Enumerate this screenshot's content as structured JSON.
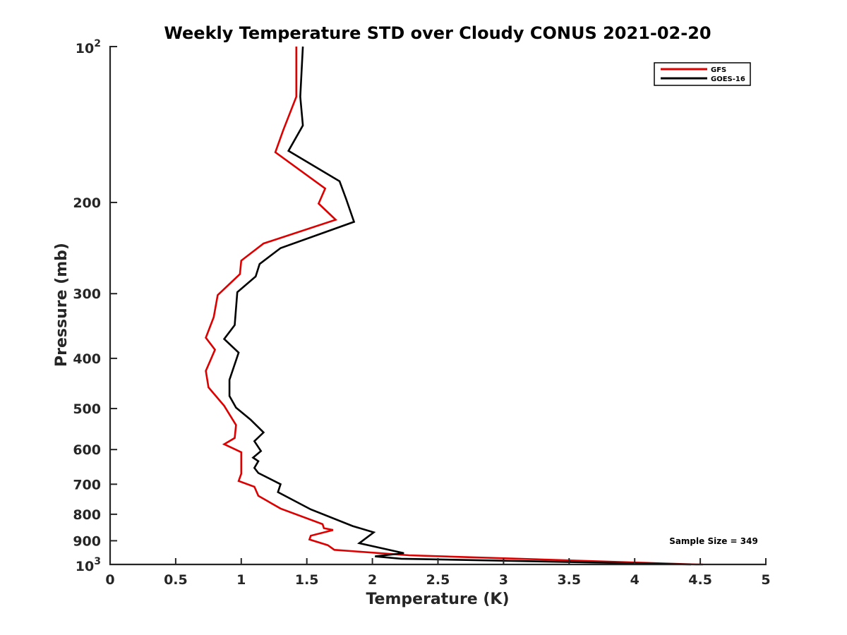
{
  "chart_data": {
    "type": "line",
    "title": "Weekly Temperature STD over Cloudy CONUS 2021-02-20",
    "xlabel": "Temperature (K)",
    "ylabel": "Pressure (mb)",
    "xlim": [
      0,
      5
    ],
    "ylim": [
      100,
      1000
    ],
    "y_scale": "log",
    "y_reversed": true,
    "x_ticks": [
      0,
      0.5,
      1,
      1.5,
      2,
      2.5,
      3,
      3.5,
      4,
      4.5,
      5
    ],
    "x_tick_labels": [
      "0",
      "0.5",
      "1",
      "1.5",
      "2",
      "2.5",
      "3",
      "3.5",
      "4",
      "4.5",
      "5"
    ],
    "y_ticks": [
      200,
      300,
      400,
      500,
      600,
      700,
      800,
      900
    ],
    "y_tick_labels": [
      "200",
      "300",
      "400",
      "500",
      "600",
      "700",
      "800",
      "900"
    ],
    "y_end_labels": [
      {
        "value": 100,
        "base": "10",
        "exp": "2"
      },
      {
        "value": 1000,
        "base": "10",
        "exp": "3"
      }
    ],
    "legend_position": "top-right",
    "annotation": "Sample Size = 349",
    "series": [
      {
        "name": "GFS",
        "color": "#dd0000",
        "points": [
          [
            1.42,
            100
          ],
          [
            1.42,
            125
          ],
          [
            1.32,
            145
          ],
          [
            1.26,
            160
          ],
          [
            1.64,
            188
          ],
          [
            1.59,
            201
          ],
          [
            1.72,
            216
          ],
          [
            1.17,
            240
          ],
          [
            1.0,
            259
          ],
          [
            0.99,
            275
          ],
          [
            0.82,
            302
          ],
          [
            0.79,
            333
          ],
          [
            0.73,
            365
          ],
          [
            0.8,
            385
          ],
          [
            0.73,
            423
          ],
          [
            0.75,
            455
          ],
          [
            0.87,
            494
          ],
          [
            0.96,
            538
          ],
          [
            0.95,
            570
          ],
          [
            0.87,
            586
          ],
          [
            1.0,
            607
          ],
          [
            1.0,
            668
          ],
          [
            0.98,
            690
          ],
          [
            1.1,
            708
          ],
          [
            1.13,
            737
          ],
          [
            1.3,
            780
          ],
          [
            1.62,
            836
          ],
          [
            1.63,
            851
          ],
          [
            1.7,
            858
          ],
          [
            1.53,
            880
          ],
          [
            1.52,
            895
          ],
          [
            1.66,
            918
          ],
          [
            1.71,
            937
          ],
          [
            2.28,
            960
          ],
          [
            4.47,
            1000
          ],
          [
            4.52,
            1000
          ]
        ]
      },
      {
        "name": "GOES-16",
        "color": "#000000",
        "points": [
          [
            1.47,
            100
          ],
          [
            1.45,
            125
          ],
          [
            1.47,
            142
          ],
          [
            1.36,
            159
          ],
          [
            1.75,
            182
          ],
          [
            1.8,
            197
          ],
          [
            1.86,
            218
          ],
          [
            1.3,
            245
          ],
          [
            1.14,
            263
          ],
          [
            1.11,
            278
          ],
          [
            0.97,
            298
          ],
          [
            0.95,
            345
          ],
          [
            0.87,
            367
          ],
          [
            0.98,
            390
          ],
          [
            0.91,
            440
          ],
          [
            0.91,
            473
          ],
          [
            0.96,
            498
          ],
          [
            1.07,
            525
          ],
          [
            1.17,
            556
          ],
          [
            1.1,
            578
          ],
          [
            1.15,
            604
          ],
          [
            1.09,
            622
          ],
          [
            1.13,
            632
          ],
          [
            1.1,
            651
          ],
          [
            1.13,
            666
          ],
          [
            1.3,
            700
          ],
          [
            1.28,
            725
          ],
          [
            1.53,
            783
          ],
          [
            1.85,
            843
          ],
          [
            2.01,
            867
          ],
          [
            1.9,
            910
          ],
          [
            2.24,
            951
          ],
          [
            2.02,
            965
          ],
          [
            2.22,
            975
          ],
          [
            4.43,
            1000
          ]
        ]
      }
    ]
  }
}
